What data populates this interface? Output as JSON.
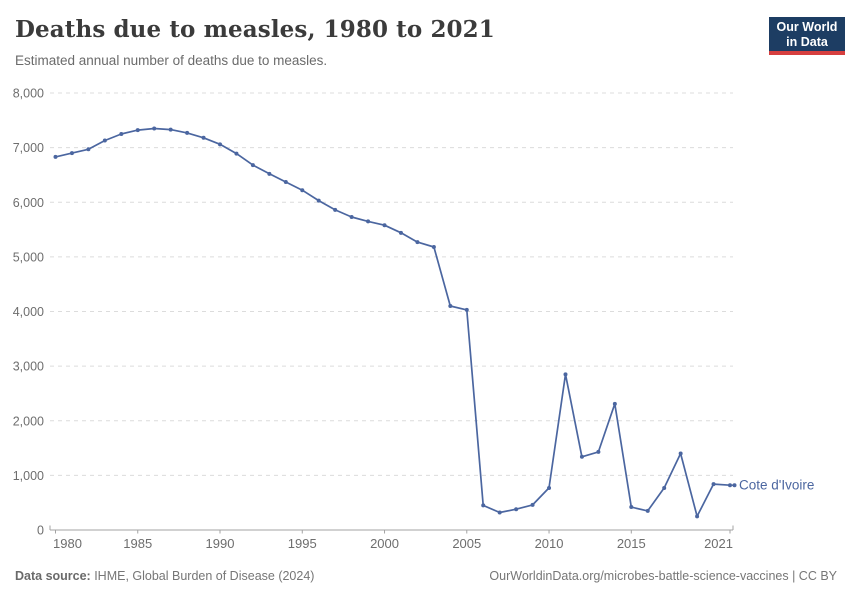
{
  "header": {
    "title": "Deaths due to measles, 1980 to 2021",
    "subtitle": "Estimated annual number of deaths due to measles.",
    "logo": {
      "line1": "Our World",
      "line2": "in Data",
      "bg_color": "#1d3d63",
      "accent_color": "#d63f3f"
    }
  },
  "chart_data": {
    "type": "line",
    "title": "Deaths due to measles, 1980 to 2021",
    "xlabel": "",
    "ylabel": "",
    "xlim": [
      1980,
      2021
    ],
    "ylim": [
      0,
      8000
    ],
    "x_ticks": [
      1980,
      1985,
      1990,
      1995,
      2000,
      2005,
      2010,
      2015,
      2021
    ],
    "y_ticks": [
      0,
      1000,
      2000,
      3000,
      4000,
      5000,
      6000,
      7000,
      8000
    ],
    "grid": "horizontal-dashed",
    "legend_position": "end-of-line-label",
    "series": [
      {
        "name": "Cote d'Ivoire",
        "color": "#4b66a0",
        "x": [
          1980,
          1981,
          1982,
          1983,
          1984,
          1985,
          1986,
          1987,
          1988,
          1989,
          1990,
          1991,
          1992,
          1993,
          1994,
          1995,
          1996,
          1997,
          1998,
          1999,
          2000,
          2001,
          2002,
          2003,
          2004,
          2005,
          2006,
          2007,
          2008,
          2009,
          2010,
          2011,
          2012,
          2013,
          2014,
          2015,
          2016,
          2017,
          2018,
          2019,
          2020,
          2021
        ],
        "values": [
          6830,
          6900,
          6970,
          7130,
          7250,
          7320,
          7350,
          7330,
          7270,
          7180,
          7060,
          6890,
          6680,
          6520,
          6370,
          6220,
          6030,
          5860,
          5730,
          5650,
          5580,
          5440,
          5270,
          5180,
          4100,
          4030,
          450,
          320,
          380,
          460,
          770,
          2850,
          1340,
          1430,
          2310,
          420,
          350,
          770,
          1400,
          250,
          840,
          820
        ]
      }
    ]
  },
  "footer": {
    "source_label": "Data source:",
    "source_text": " IHME, Global Burden of Disease (2024)",
    "credit": "OurWorldinData.org/microbes-battle-science-vaccines | CC BY"
  }
}
